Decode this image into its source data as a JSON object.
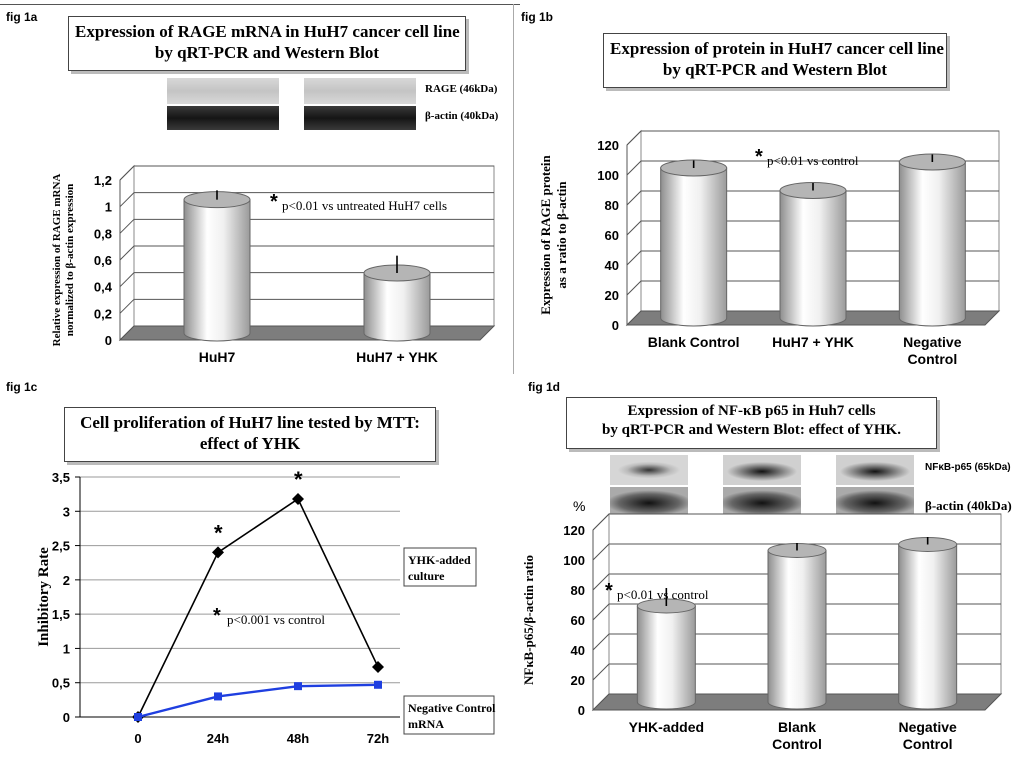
{
  "panels": {
    "a": {
      "label": "fig 1a",
      "title": [
        "Expression of RAGE mRNA in HuH7 cancer cell line",
        "by qRT-PCR and Western Blot"
      ],
      "blot_labels": [
        "RAGE (46kDa)",
        "β-actin (40kDa)"
      ]
    },
    "b": {
      "label": "fig 1b",
      "title": [
        "Expression of protein in HuH7 cancer cell line",
        "by qRT-PCR and Western Blot"
      ]
    },
    "c": {
      "label": "fig 1c",
      "title": [
        "Cell proliferation of HuH7 line tested by MTT:",
        "effect of YHK"
      ]
    },
    "d": {
      "label": "fig 1d",
      "title": [
        "Expression of NF-κB p65 in Huh7 cells",
        "by qRT-PCR and Western Blot: effect of YHK."
      ],
      "blot_labels": [
        "NFκB-p65 (65kDa)",
        "β-actin (40kDa)"
      ],
      "percent_label": "%"
    }
  },
  "chart_data": [
    {
      "id": "fig1a",
      "type": "bar",
      "categories": [
        "HuH7",
        "HuH7 + YHK"
      ],
      "values": [
        1.0,
        0.45
      ],
      "errors": [
        0.07,
        0.13
      ],
      "ylabel": [
        "Relative expression of RAGE mRNA",
        "normalized to β-actin expression"
      ],
      "ylim": [
        0,
        1.2
      ],
      "yticks": [
        "0",
        "0,2",
        "0,4",
        "0,6",
        "0,8",
        "1",
        "1,2"
      ],
      "annotation": {
        "star": "*",
        "text": "p<0.01 vs untreated HuH7 cells"
      }
    },
    {
      "id": "fig1b",
      "type": "bar",
      "categories": [
        "Blank Control",
        "HuH7 + YHK",
        "Negative Control"
      ],
      "values": [
        100,
        85,
        104
      ],
      "errors": [
        5,
        5,
        5
      ],
      "ylabel": [
        "Expression of RAGE protein",
        "as a ratio to β-actin"
      ],
      "ylim": [
        0,
        120
      ],
      "yticks": [
        "0",
        "20",
        "40",
        "60",
        "80",
        "100",
        "120"
      ],
      "annotation": {
        "star": "*",
        "text": "p<0.01 vs control"
      }
    },
    {
      "id": "fig1c",
      "type": "line",
      "x": [
        "0",
        "24h",
        "48h",
        "72h"
      ],
      "series": [
        {
          "name": "YHK-added culture",
          "values": [
            0,
            2.4,
            3.18,
            0.73
          ],
          "color": "#000000"
        },
        {
          "name": "Negative Control mRNA",
          "values": [
            0,
            0.3,
            0.45,
            0.47
          ],
          "color": "#1f3fe0"
        }
      ],
      "stars": [
        "*",
        "*"
      ],
      "ylabel": "Inhibitory Rate",
      "ylim": [
        0,
        3.5
      ],
      "yticks": [
        "0",
        "0,5",
        "1",
        "1,5",
        "2",
        "2,5",
        "3",
        "3,5"
      ],
      "annotation": {
        "star": "*",
        "text": "p<0.001 vs control"
      },
      "legend": [
        "YHK-added culture",
        "Negative Control mRNA"
      ]
    },
    {
      "id": "fig1d",
      "type": "bar",
      "categories": [
        "YHK-added",
        "Blank Control",
        "Negative Control"
      ],
      "values": [
        64,
        101,
        105
      ],
      "errors": [
        12,
        5,
        5
      ],
      "ylabel": "NFκB-p65/β-actin ratio",
      "ylim": [
        0,
        120
      ],
      "yticks": [
        "0",
        "20",
        "40",
        "60",
        "80",
        "100",
        "120"
      ],
      "annotation": {
        "star": "*",
        "text": "p<0.01 vs control"
      }
    }
  ]
}
